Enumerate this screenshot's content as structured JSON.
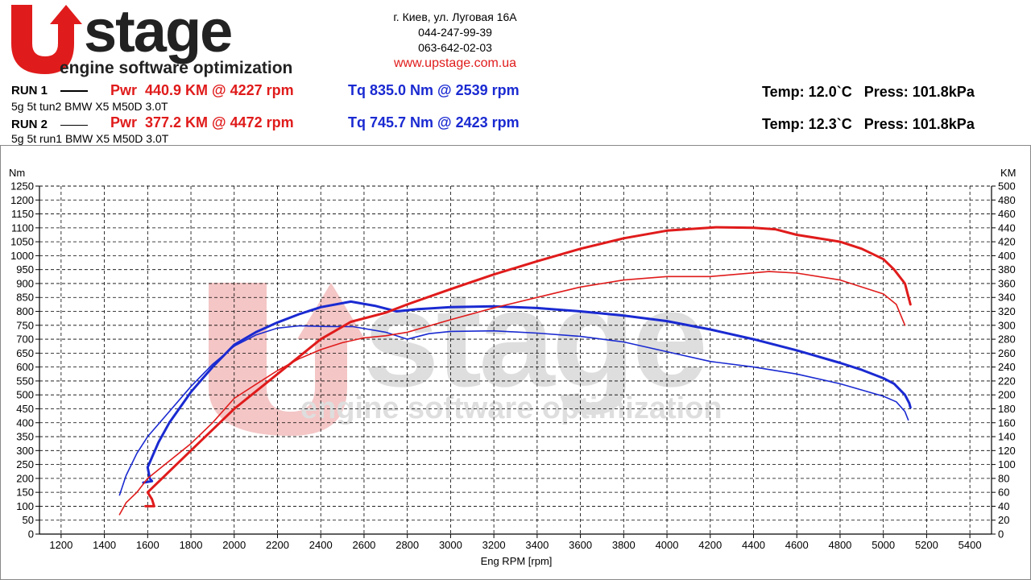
{
  "header": {
    "logo_text": "Upstage",
    "logo_tagline": "engine software optimization",
    "address": "г. Киев, ул. Луговая 16А",
    "phone1": "044-247-99-39",
    "phone2": "063-642-02-03",
    "website": "www.upstage.com.ua"
  },
  "runs": [
    {
      "label": "RUN 1",
      "description": "5g 5t tun2 BMW X5 M50D 3.0T",
      "power_summary": "Pwr  440.9 KM @ 4227 rpm",
      "torque_summary": "Tq 835.0 Nm @ 2539 rpm",
      "temp": "Temp: 12.0`C",
      "press": "Press: 101.8kPa"
    },
    {
      "label": "RUN 2",
      "description": "5g 5t run1 BMW X5 M50D 3.0T",
      "power_summary": "Pwr  377.2 KM @ 4472 rpm",
      "torque_summary": "Tq 745.7 Nm @ 2423 rpm",
      "temp": "Temp: 12.3`C",
      "press": "Press: 101.8kPa"
    }
  ],
  "colors": {
    "power": "#e01b1b",
    "torque": "#1a2ad1",
    "watermark_red": "#f4c6c6",
    "watermark_gray": "#dedede"
  },
  "chart_data": {
    "type": "line",
    "xlabel": "Eng RPM [rpm]",
    "ylabel_left": "Nm",
    "ylabel_right": "KM",
    "xlim": [
      1100,
      5500
    ],
    "ylim_left": [
      0,
      1250
    ],
    "ylim_right": [
      0,
      500
    ],
    "x_ticks": [
      1200,
      1400,
      1600,
      1800,
      2000,
      2200,
      2400,
      2600,
      2800,
      3000,
      3200,
      3400,
      3600,
      3800,
      4000,
      4200,
      4400,
      4600,
      4800,
      5000,
      5200,
      5400
    ],
    "y_left_ticks": [
      0,
      50,
      100,
      150,
      200,
      250,
      300,
      350,
      400,
      450,
      500,
      550,
      600,
      650,
      700,
      750,
      800,
      850,
      900,
      950,
      1000,
      1050,
      1100,
      1150,
      1200,
      1250
    ],
    "y_right_ticks": [
      0,
      20,
      40,
      60,
      80,
      100,
      120,
      140,
      160,
      180,
      200,
      220,
      240,
      260,
      280,
      300,
      320,
      340,
      360,
      380,
      400,
      420,
      440,
      460,
      480,
      500
    ],
    "grid": true,
    "series": [
      {
        "name": "Tq",
        "run": "RUN 1",
        "axis": "left",
        "color": "#1a2ad1",
        "width": 3,
        "points": [
          [
            1580,
            185
          ],
          [
            1620,
            190
          ],
          [
            1610,
            200
          ],
          [
            1600,
            240
          ],
          [
            1650,
            330
          ],
          [
            1700,
            400
          ],
          [
            1800,
            510
          ],
          [
            1900,
            600
          ],
          [
            2000,
            680
          ],
          [
            2100,
            725
          ],
          [
            2200,
            760
          ],
          [
            2300,
            790
          ],
          [
            2400,
            815
          ],
          [
            2539,
            835
          ],
          [
            2650,
            820
          ],
          [
            2750,
            800
          ],
          [
            2850,
            808
          ],
          [
            3000,
            815
          ],
          [
            3200,
            818
          ],
          [
            3400,
            812
          ],
          [
            3600,
            800
          ],
          [
            3800,
            785
          ],
          [
            4000,
            765
          ],
          [
            4200,
            735
          ],
          [
            4400,
            700
          ],
          [
            4600,
            660
          ],
          [
            4800,
            615
          ],
          [
            4900,
            590
          ],
          [
            5000,
            560
          ],
          [
            5050,
            540
          ],
          [
            5100,
            500
          ],
          [
            5120,
            470
          ],
          [
            5125,
            455
          ]
        ]
      },
      {
        "name": "Tq",
        "run": "RUN 2",
        "axis": "left",
        "color": "#1a2ad1",
        "width": 1.6,
        "points": [
          [
            1470,
            140
          ],
          [
            1500,
            210
          ],
          [
            1550,
            290
          ],
          [
            1600,
            350
          ],
          [
            1700,
            440
          ],
          [
            1800,
            530
          ],
          [
            1900,
            610
          ],
          [
            2000,
            675
          ],
          [
            2100,
            715
          ],
          [
            2200,
            740
          ],
          [
            2300,
            748
          ],
          [
            2423,
            745.7
          ],
          [
            2550,
            745
          ],
          [
            2700,
            725
          ],
          [
            2800,
            700
          ],
          [
            2900,
            720
          ],
          [
            3000,
            728
          ],
          [
            3200,
            730
          ],
          [
            3400,
            722
          ],
          [
            3600,
            710
          ],
          [
            3800,
            690
          ],
          [
            4000,
            655
          ],
          [
            4200,
            620
          ],
          [
            4400,
            600
          ],
          [
            4600,
            575
          ],
          [
            4800,
            540
          ],
          [
            5000,
            495
          ],
          [
            5060,
            475
          ],
          [
            5100,
            440
          ],
          [
            5115,
            410
          ]
        ]
      },
      {
        "name": "Pwr",
        "run": "RUN 1",
        "axis": "right",
        "color": "#e01b1b",
        "width": 3,
        "points": [
          [
            1590,
            40
          ],
          [
            1630,
            40
          ],
          [
            1620,
            50
          ],
          [
            1600,
            60
          ],
          [
            1700,
            90
          ],
          [
            1800,
            120
          ],
          [
            1900,
            150
          ],
          [
            2000,
            180
          ],
          [
            2100,
            205
          ],
          [
            2200,
            230
          ],
          [
            2300,
            255
          ],
          [
            2400,
            280
          ],
          [
            2539,
            305
          ],
          [
            2700,
            318
          ],
          [
            2800,
            330
          ],
          [
            3000,
            352
          ],
          [
            3200,
            373
          ],
          [
            3400,
            392
          ],
          [
            3600,
            410
          ],
          [
            3800,
            425
          ],
          [
            4000,
            436
          ],
          [
            4227,
            440.9
          ],
          [
            4400,
            440
          ],
          [
            4500,
            438
          ],
          [
            4600,
            430
          ],
          [
            4800,
            420
          ],
          [
            4900,
            410
          ],
          [
            5000,
            395
          ],
          [
            5050,
            380
          ],
          [
            5100,
            360
          ],
          [
            5125,
            330
          ]
        ]
      },
      {
        "name": "Pwr",
        "run": "RUN 2",
        "axis": "right",
        "color": "#e01b1b",
        "width": 1.6,
        "points": [
          [
            1470,
            28
          ],
          [
            1500,
            45
          ],
          [
            1550,
            60
          ],
          [
            1600,
            80
          ],
          [
            1700,
            105
          ],
          [
            1800,
            130
          ],
          [
            1900,
            160
          ],
          [
            2000,
            195
          ],
          [
            2100,
            215
          ],
          [
            2200,
            235
          ],
          [
            2300,
            252
          ],
          [
            2400,
            265
          ],
          [
            2500,
            275
          ],
          [
            2600,
            282
          ],
          [
            2700,
            285
          ],
          [
            2800,
            290
          ],
          [
            3000,
            308
          ],
          [
            3200,
            325
          ],
          [
            3400,
            340
          ],
          [
            3600,
            355
          ],
          [
            3800,
            365
          ],
          [
            4000,
            370
          ],
          [
            4200,
            370
          ],
          [
            4472,
            377.2
          ],
          [
            4600,
            375
          ],
          [
            4800,
            365
          ],
          [
            5000,
            345
          ],
          [
            5060,
            330
          ],
          [
            5100,
            300
          ]
        ]
      }
    ]
  }
}
